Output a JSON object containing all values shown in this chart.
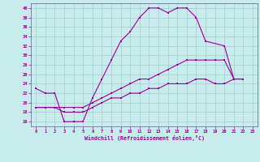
{
  "xlabel": "Windchill (Refroidissement éolien,°C)",
  "xlim": [
    -0.5,
    23.5
  ],
  "ylim": [
    15,
    41
  ],
  "yticks": [
    16,
    18,
    20,
    22,
    24,
    26,
    28,
    30,
    32,
    34,
    36,
    38,
    40
  ],
  "xticks": [
    0,
    1,
    2,
    3,
    4,
    5,
    6,
    7,
    8,
    9,
    10,
    11,
    12,
    13,
    14,
    15,
    16,
    17,
    18,
    19,
    20,
    21,
    22,
    23
  ],
  "bg_color": "#c8ecec",
  "grid_color": "#a0cccc",
  "line_color": "#990099",
  "spine_color": "#667799",
  "line1_x": [
    0,
    1,
    2,
    3,
    4,
    5,
    6,
    7,
    8,
    9,
    10,
    11,
    12,
    13,
    14,
    15,
    16,
    17,
    18,
    20,
    21,
    22
  ],
  "line1_y": [
    23,
    22,
    22,
    16,
    16,
    16,
    21,
    25,
    29,
    33,
    35,
    38,
    40,
    40,
    39,
    40,
    40,
    38,
    33,
    32,
    25,
    25
  ],
  "line2_x": [
    0,
    1,
    2,
    3,
    4,
    5,
    6,
    7,
    8,
    9,
    10,
    11,
    12,
    13,
    14,
    15,
    16,
    17,
    18,
    19,
    20,
    21,
    22
  ],
  "line2_y": [
    19,
    19,
    19,
    19,
    19,
    19,
    20,
    21,
    22,
    23,
    24,
    25,
    25,
    26,
    27,
    28,
    29,
    29,
    29,
    29,
    29,
    25,
    25
  ],
  "line3_x": [
    0,
    1,
    2,
    3,
    4,
    5,
    6,
    7,
    8,
    9,
    10,
    11,
    12,
    13,
    14,
    15,
    16,
    17,
    18,
    19,
    20,
    21,
    22
  ],
  "line3_y": [
    19,
    19,
    19,
    18,
    18,
    18,
    19,
    20,
    21,
    21,
    22,
    22,
    23,
    23,
    24,
    24,
    24,
    25,
    25,
    24,
    24,
    25,
    25
  ]
}
